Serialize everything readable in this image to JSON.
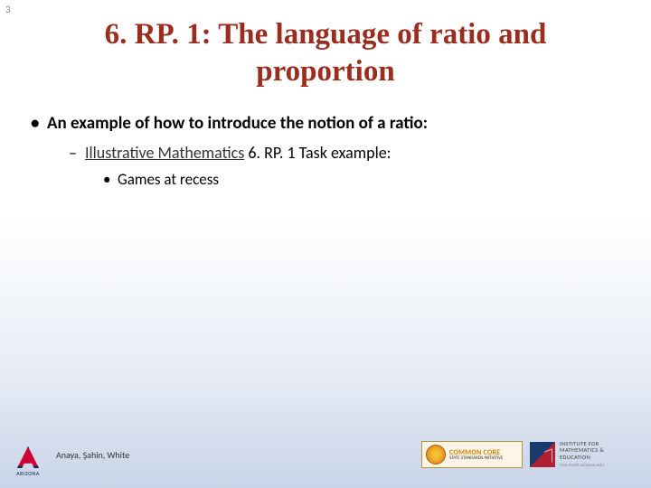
{
  "page_number": "3",
  "title": "6. RP. 1: The language of ratio and proportion",
  "bullets": {
    "l1_text": "An example of how to introduce the notion of a ratio:",
    "l2_link": "Illustrative Mathematics",
    "l2_rest": " 6. RP. 1 Task example:",
    "l3_text": "Games at recess"
  },
  "footer": {
    "ua_label": "ARIZONA",
    "authors": "Anaya, Şahin, White",
    "cc_main": "COMMON CORE",
    "cc_sub": "STATE STANDARDS INITIATIVE",
    "ime_line1": "INSTITUTE FOR",
    "ime_line2": "MATHEMATICS &",
    "ime_line3": "EDUCATION",
    "ime_url": "ime.math.arizona.edu"
  },
  "colors": {
    "title_color": "#9b2d1f",
    "bg_gradient_end": "#c8d4e8",
    "ua_red": "#cc0033",
    "ua_blue": "#002b5c",
    "cc_orange": "#d98200"
  }
}
